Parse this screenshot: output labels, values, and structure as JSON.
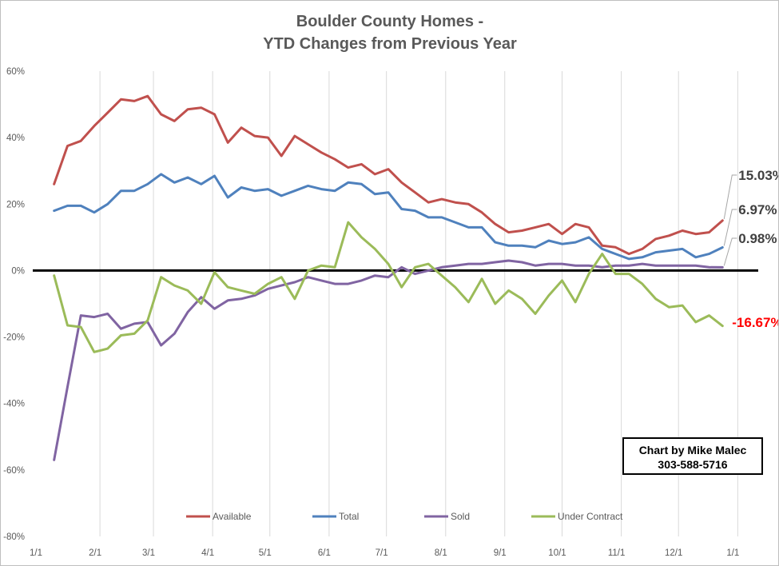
{
  "chart_data": {
    "type": "line",
    "title_lines": [
      "Boulder County Homes -",
      "YTD Changes from Previous Year"
    ],
    "xlabel": "",
    "ylabel": "",
    "x_tick_labels": [
      "1/1",
      "2/1",
      "3/1",
      "4/1",
      "5/1",
      "6/1",
      "7/1",
      "8/1",
      "9/1",
      "10/1",
      "11/1",
      "12/1",
      "1/1"
    ],
    "y_tick_labels": [
      "60%",
      "40%",
      "20%",
      "0%",
      "-20%",
      "-40%",
      "-60%",
      "-80%"
    ],
    "ylim": [
      -80,
      60
    ],
    "xlim_weeks": [
      0,
      52
    ],
    "grid": "vertical lines at month ticks",
    "zero_line": "bold black",
    "legend_position": "bottom",
    "x_weeks": [
      1,
      2,
      3,
      4,
      5,
      6,
      7,
      8,
      9,
      10,
      11,
      12,
      13,
      14,
      15,
      16,
      17,
      18,
      19,
      20,
      21,
      22,
      23,
      24,
      25,
      26,
      27,
      28,
      29,
      30,
      31,
      32,
      33,
      34,
      35,
      36,
      37,
      38,
      39,
      40,
      41,
      42,
      43,
      44,
      45,
      46,
      47,
      48,
      49,
      50,
      51
    ],
    "series": [
      {
        "name": "Available",
        "color": "#c0504d",
        "end_label": "15.03%",
        "end_label_color": "#404040",
        "values": [
          26,
          37.5,
          39,
          43.5,
          47.5,
          51.5,
          51,
          52.5,
          47,
          45,
          48.5,
          49,
          47,
          38.5,
          43,
          40.5,
          40,
          34.5,
          40.5,
          38,
          35.5,
          33.5,
          31,
          32,
          29,
          30.5,
          26.5,
          23.5,
          20.5,
          21.5,
          20.5,
          20,
          17.5,
          14,
          11.5,
          12,
          13,
          14,
          11,
          14,
          13,
          7.5,
          7,
          5,
          6.5,
          9.5,
          10.5,
          12,
          11,
          11.5,
          15.03
        ]
      },
      {
        "name": "Total",
        "color": "#4f81bd",
        "end_label": "6.97%",
        "end_label_color": "#404040",
        "values": [
          18,
          19.5,
          19.5,
          17.5,
          20,
          24,
          24,
          26,
          29,
          26.5,
          28,
          26,
          28.5,
          22,
          25,
          24,
          24.5,
          22.5,
          24,
          25.5,
          24.5,
          24,
          26.5,
          26,
          23,
          23.5,
          18.5,
          18,
          16,
          16,
          14.5,
          13,
          13,
          8.5,
          7.5,
          7.5,
          7,
          9,
          8,
          8.5,
          10,
          6.5,
          5,
          3.5,
          4,
          5.5,
          6,
          6.5,
          4,
          5,
          6.97
        ]
      },
      {
        "name": "Sold",
        "color": "#8064a2",
        "end_label": "0.98%",
        "end_label_color": "#404040",
        "values": [
          -57,
          -35,
          -13.5,
          -14,
          -13,
          -17.5,
          -16,
          -15.5,
          -22.5,
          -19,
          -12.5,
          -8,
          -11.5,
          -9,
          -8.5,
          -7.5,
          -5.5,
          -4.5,
          -3.5,
          -2,
          -3,
          -4,
          -4,
          -3,
          -1.5,
          -2,
          1,
          -1,
          0,
          1,
          1.5,
          2,
          2,
          2.5,
          3,
          2.5,
          1.5,
          2,
          2,
          1.5,
          1.5,
          1,
          1.5,
          1.5,
          2,
          1.5,
          1.5,
          1.5,
          1.5,
          1,
          0.98
        ]
      },
      {
        "name": "Under Contract",
        "color": "#9bbb59",
        "end_label": "-16.67%",
        "end_label_color": "#ff0000",
        "values": [
          -1.5,
          -16.5,
          -17,
          -24.5,
          -23.5,
          -19.5,
          -19,
          -15,
          -2,
          -4.5,
          -6,
          -10,
          -0.5,
          -5,
          -6,
          -7,
          -4,
          -2,
          -8.5,
          0,
          1.5,
          1,
          14.5,
          10,
          6.5,
          2,
          -5,
          1,
          2,
          -1.5,
          -5,
          -9.5,
          -2.5,
          -10,
          -6,
          -8.5,
          -13,
          -7.5,
          -3,
          -9.5,
          -1,
          5,
          -1,
          -1,
          -4,
          -8.5,
          -11,
          -10.5,
          -15.5,
          -13.5,
          -16.67
        ]
      }
    ]
  },
  "credit": {
    "line1": "Chart by Mike Malec",
    "line2": "303-588-5716"
  }
}
